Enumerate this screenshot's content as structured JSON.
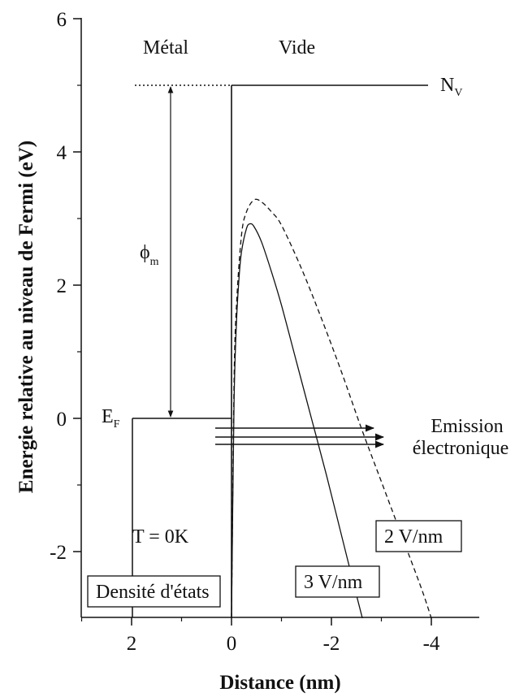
{
  "chart_data": {
    "type": "line",
    "xlabel": "Distance (nm)",
    "ylabel": "Energie relative au niveau de Fermi (eV)",
    "xlim": [
      3,
      -4.7
    ],
    "ylim": [
      -3,
      6
    ],
    "x_ticks": [
      2,
      0,
      -2,
      -4
    ],
    "y_ticks": [
      -2,
      0,
      2,
      4,
      6
    ],
    "series": [
      {
        "name": "3 V/nm",
        "style": "solid",
        "x": [
          0.0,
          -0.05,
          -0.1,
          -0.15,
          -0.2,
          -0.3,
          -0.37,
          -0.45,
          -0.6,
          -0.8,
          -1.0,
          -1.3,
          -1.6,
          -1.9,
          -2.2,
          -2.5,
          -2.62
        ],
        "y": [
          -3.0,
          0.2,
          1.45,
          2.1,
          2.5,
          2.85,
          2.92,
          2.88,
          2.65,
          2.2,
          1.7,
          0.85,
          0.0,
          -0.85,
          -1.75,
          -2.65,
          -3.0
        ]
      },
      {
        "name": "2 V/nm",
        "style": "dashed",
        "x": [
          0.0,
          -0.05,
          -0.1,
          -0.2,
          -0.3,
          -0.45,
          -0.6,
          -0.8,
          -1.0,
          -1.4,
          -1.8,
          -2.2,
          -2.6,
          -3.0,
          -3.4,
          -3.8,
          -4.0
        ],
        "y": [
          -3.0,
          0.5,
          1.7,
          2.75,
          3.1,
          3.28,
          3.25,
          3.1,
          2.9,
          2.25,
          1.5,
          0.7,
          -0.15,
          -0.95,
          -1.75,
          -2.55,
          -3.0
        ]
      }
    ],
    "annotations": {
      "metal": "Métal",
      "vacuum": "Vide",
      "vacuum_level": "N",
      "vacuum_level_sub": "V",
      "fermi_level": "E",
      "fermi_level_sub": "F",
      "work_function": "ϕ",
      "work_function_sub": "m",
      "temperature": "T = 0K",
      "density_of_states": "Densité d'états",
      "emission_line1": "Emission",
      "emission_line2": "électronique",
      "field_3": "3 V/nm",
      "field_2": "2 V/nm"
    },
    "levels": {
      "vacuum_eV": 5,
      "fermi_eV": 0
    },
    "colors": {
      "line": "#111111",
      "background": "#ffffff"
    }
  }
}
